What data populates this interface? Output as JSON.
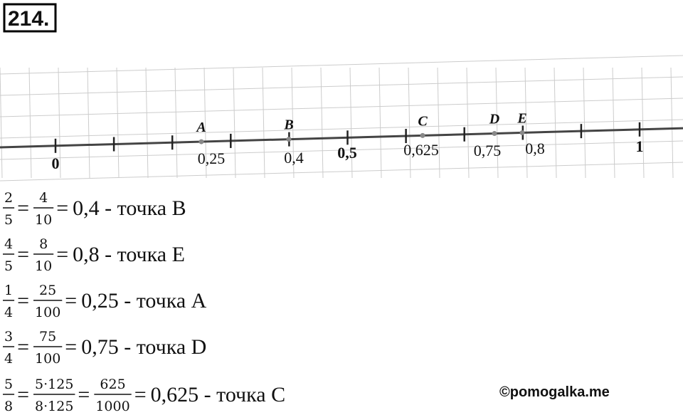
{
  "header": {
    "title": "214."
  },
  "number_line": {
    "tick_labels": [
      "0",
      "0,25",
      "0,4",
      "0,5",
      "0,625",
      "0,75",
      "0,8",
      "1"
    ],
    "points": [
      "A",
      "B",
      "C",
      "D",
      "E"
    ]
  },
  "equals_sign": "=",
  "equations": [
    {
      "fractions": [
        {
          "num": "2",
          "den": "5"
        },
        {
          "num": "4",
          "den": "10"
        }
      ],
      "result": "0,4 - точка B"
    },
    {
      "fractions": [
        {
          "num": "4",
          "den": "5"
        },
        {
          "num": "8",
          "den": "10"
        }
      ],
      "result": "0,8 - точка E"
    },
    {
      "fractions": [
        {
          "num": "1",
          "den": "4"
        },
        {
          "num": "25",
          "den": "100"
        }
      ],
      "result": "0,25 - точка A"
    },
    {
      "fractions": [
        {
          "num": "3",
          "den": "4"
        },
        {
          "num": "75",
          "den": "100"
        }
      ],
      "result": "0,75 - точка D"
    },
    {
      "fractions": [
        {
          "num": "5",
          "den": "8"
        },
        {
          "num": "5·125",
          "den": "8·125"
        },
        {
          "num": "625",
          "den": "1000"
        }
      ],
      "result": "0,625 - точка C"
    }
  ],
  "watermark": "©pomogalka.me"
}
